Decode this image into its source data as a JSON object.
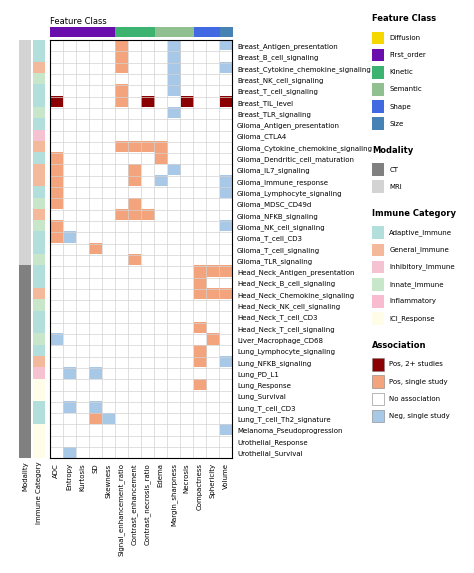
{
  "chart_data": {
    "type": "heatmap",
    "rows": [
      "Breast_Antigen_presentation",
      "Breast_B_cell_signaling",
      "Breast_Cytokine_chemokine_signaling",
      "Breast_NK_cell_signaling",
      "Breast_T_cell_signaling",
      "Breast_TIL_level",
      "Breast_TLR_signaling",
      "Glioma_Antigen_presentation",
      "Glioma_CTLA4",
      "Glioma_Cytokine_chemokine_signaling",
      "Glioma_Dendritic_cell_maturation",
      "Glioma_IL7_signaling",
      "Glioma_Immune_response",
      "Glioma_Lymphocyte_signaling",
      "Glioma_MDSC_CD49d",
      "Glioma_NFKB_signaling",
      "Glioma_NK_cell_signaling",
      "Glioma_T_cell_CD3",
      "Glioma_T_cell_signaling",
      "Glioma_TLR_signaling",
      "Head_Neck_Antigen_presentation",
      "Head_Neck_B_cell_signaling",
      "Head_Neck_Chemokine_signaling",
      "Head_Neck_NK_cell_signaling",
      "Head_Neck_T_cell_CD3",
      "Head_Neck_T_cell_signaling",
      "Liver_Macrophage_CD68",
      "Lung_Lymphocyte_signaling",
      "Lung_NFKB_signaling",
      "Lung_PD_L1",
      "Lung_Response",
      "Lung_Survival",
      "Lung_T_cell_CD3",
      "Lung_T_cell_Th2_signature",
      "Melanoma_Pseudoprogression",
      "Urothelial_Response",
      "Urothelial_Survival"
    ],
    "cols": [
      "ADC",
      "Entropy",
      "Kurtosis",
      "SD",
      "Skewness",
      "Signal_enhancement_ratio",
      "Contrast_enhancement",
      "Contrast_necrosis_ratio",
      "Edema",
      "Margin_sharpness",
      "Necrosis",
      "Compactness",
      "Sphericity",
      "Volume"
    ],
    "cells": [
      [
        0,
        0,
        0,
        0,
        0,
        2,
        0,
        0,
        0,
        3,
        0,
        0,
        0,
        3
      ],
      [
        0,
        0,
        0,
        0,
        0,
        2,
        0,
        0,
        0,
        3,
        0,
        0,
        0,
        0
      ],
      [
        0,
        0,
        0,
        0,
        0,
        2,
        0,
        0,
        0,
        3,
        0,
        0,
        0,
        3
      ],
      [
        0,
        0,
        0,
        0,
        0,
        0,
        0,
        0,
        0,
        3,
        0,
        0,
        0,
        0
      ],
      [
        0,
        0,
        0,
        0,
        0,
        2,
        0,
        0,
        0,
        3,
        0,
        0,
        0,
        0
      ],
      [
        1,
        0,
        0,
        0,
        0,
        2,
        0,
        1,
        0,
        0,
        1,
        0,
        0,
        1
      ],
      [
        0,
        0,
        0,
        0,
        0,
        0,
        0,
        0,
        0,
        3,
        0,
        0,
        0,
        0
      ],
      [
        0,
        0,
        0,
        0,
        0,
        0,
        0,
        0,
        0,
        0,
        0,
        0,
        0,
        0
      ],
      [
        0,
        0,
        0,
        0,
        0,
        0,
        0,
        0,
        0,
        0,
        0,
        0,
        0,
        0
      ],
      [
        0,
        0,
        0,
        0,
        0,
        2,
        2,
        2,
        2,
        0,
        0,
        0,
        0,
        0
      ],
      [
        2,
        0,
        0,
        0,
        0,
        0,
        0,
        0,
        2,
        0,
        0,
        0,
        0,
        0
      ],
      [
        2,
        0,
        0,
        0,
        0,
        0,
        2,
        0,
        0,
        3,
        0,
        0,
        0,
        0
      ],
      [
        2,
        0,
        0,
        0,
        0,
        0,
        2,
        0,
        3,
        0,
        0,
        0,
        0,
        3
      ],
      [
        2,
        0,
        0,
        0,
        0,
        0,
        0,
        0,
        0,
        0,
        0,
        0,
        0,
        3
      ],
      [
        2,
        0,
        0,
        0,
        0,
        0,
        2,
        0,
        0,
        0,
        0,
        0,
        0,
        0
      ],
      [
        0,
        0,
        0,
        0,
        0,
        2,
        2,
        2,
        0,
        0,
        0,
        0,
        0,
        0
      ],
      [
        2,
        0,
        0,
        0,
        0,
        0,
        0,
        0,
        0,
        0,
        0,
        0,
        0,
        3
      ],
      [
        2,
        3,
        0,
        0,
        0,
        0,
        0,
        0,
        0,
        0,
        0,
        0,
        0,
        0
      ],
      [
        0,
        0,
        0,
        2,
        0,
        0,
        0,
        0,
        0,
        0,
        0,
        0,
        0,
        0
      ],
      [
        0,
        0,
        0,
        0,
        0,
        0,
        2,
        0,
        0,
        0,
        0,
        0,
        0,
        0
      ],
      [
        0,
        0,
        0,
        0,
        0,
        0,
        0,
        0,
        0,
        0,
        0,
        2,
        2,
        2
      ],
      [
        0,
        0,
        0,
        0,
        0,
        0,
        0,
        0,
        0,
        0,
        0,
        2,
        0,
        0
      ],
      [
        0,
        0,
        0,
        0,
        0,
        0,
        0,
        0,
        0,
        0,
        0,
        2,
        2,
        2
      ],
      [
        0,
        0,
        0,
        0,
        0,
        0,
        0,
        0,
        0,
        0,
        0,
        0,
        0,
        0
      ],
      [
        0,
        0,
        0,
        0,
        0,
        0,
        0,
        0,
        0,
        0,
        0,
        0,
        0,
        0
      ],
      [
        0,
        0,
        0,
        0,
        0,
        0,
        0,
        0,
        0,
        0,
        0,
        2,
        0,
        0
      ],
      [
        3,
        0,
        0,
        0,
        0,
        0,
        0,
        0,
        0,
        0,
        0,
        0,
        2,
        0
      ],
      [
        0,
        0,
        0,
        0,
        0,
        0,
        0,
        0,
        0,
        0,
        0,
        2,
        0,
        0
      ],
      [
        0,
        0,
        0,
        0,
        0,
        0,
        0,
        0,
        0,
        0,
        0,
        2,
        0,
        3
      ],
      [
        0,
        3,
        0,
        3,
        0,
        0,
        0,
        0,
        0,
        0,
        0,
        0,
        0,
        0
      ],
      [
        0,
        0,
        0,
        0,
        0,
        0,
        0,
        0,
        0,
        0,
        0,
        2,
        0,
        0
      ],
      [
        0,
        0,
        0,
        0,
        0,
        0,
        0,
        0,
        0,
        0,
        0,
        0,
        0,
        0
      ],
      [
        0,
        3,
        0,
        3,
        0,
        0,
        0,
        0,
        0,
        0,
        0,
        0,
        0,
        0
      ],
      [
        0,
        0,
        0,
        2,
        3,
        0,
        0,
        0,
        0,
        0,
        0,
        0,
        0,
        0
      ],
      [
        0,
        0,
        0,
        0,
        0,
        0,
        0,
        0,
        0,
        0,
        0,
        0,
        0,
        3
      ],
      [
        0,
        0,
        0,
        0,
        0,
        0,
        0,
        0,
        0,
        0,
        0,
        0,
        0,
        0
      ],
      [
        0,
        3,
        0,
        0,
        0,
        0,
        0,
        0,
        0,
        0,
        0,
        0,
        0,
        0
      ]
    ],
    "grid": true,
    "column_bar": {
      "title": "Feature Class",
      "values": [
        "First_order",
        "First_order",
        "First_order",
        "First_order",
        "First_order",
        "Kinetic",
        "Kinetic",
        "Kinetic",
        "Semantic",
        "Semantic",
        "Semantic",
        "Shape",
        "Shape",
        "Size"
      ],
      "entries": [
        {
          "label": "Diffusion",
          "color": "#f5d800"
        },
        {
          "label": "First_order",
          "color": "#6a0dad"
        },
        {
          "label": "Kinetic",
          "color": "#3cb371"
        },
        {
          "label": "Semantic",
          "color": "#90c090"
        },
        {
          "label": "Shape",
          "color": "#4169e1"
        },
        {
          "label": "Size",
          "color": "#4682b4"
        }
      ]
    },
    "row_bars": [
      {
        "title": "Modality",
        "values": [
          "MRI",
          "MRI",
          "MRI",
          "MRI",
          "MRI",
          "MRI",
          "MRI",
          "MRI",
          "MRI",
          "MRI",
          "MRI",
          "MRI",
          "MRI",
          "MRI",
          "MRI",
          "MRI",
          "MRI",
          "MRI",
          "MRI",
          "MRI",
          "CT",
          "CT",
          "CT",
          "CT",
          "CT",
          "CT",
          "CT",
          "CT",
          "CT",
          "CT",
          "CT",
          "CT",
          "CT",
          "CT",
          "CT",
          "CT",
          "CT"
        ],
        "entries": [
          {
            "label": "CT",
            "color": "#808080"
          },
          {
            "label": "MRI",
            "color": "#d3d3d3"
          }
        ]
      },
      {
        "title": "Immune Category",
        "values": [
          "Adaptive_Immune",
          "Adaptive_Immune",
          "General_Immune",
          "Innate_Immune",
          "Adaptive_Immune",
          "Adaptive_Immune",
          "Innate_Immune",
          "Adaptive_Immune",
          "Inhibitory_Immune",
          "General_Immune",
          "Adaptive_Immune",
          "General_Immune",
          "General_Immune",
          "Adaptive_Immune",
          "Innate_Immune",
          "General_Immune",
          "Innate_Immune",
          "Adaptive_Immune",
          "Adaptive_Immune",
          "Innate_Immune",
          "Adaptive_Immune",
          "Adaptive_Immune",
          "General_Immune",
          "Innate_Immune",
          "Adaptive_Immune",
          "Adaptive_Immune",
          "Innate_Immune",
          "Adaptive_Immune",
          "General_Immune",
          "Inhibitory_Immune",
          "ICI_Response",
          "ICI_Response",
          "Adaptive_Immune",
          "Adaptive_Immune",
          "ICI_Response",
          "ICI_Response",
          "ICI_Response"
        ],
        "entries": [
          {
            "label": "Adaptive_Immune",
            "color": "#b2dfdb"
          },
          {
            "label": "General_Immune",
            "color": "#f4b89a"
          },
          {
            "label": "Inhibitory_Immune",
            "color": "#f4c2d0"
          },
          {
            "label": "Innate_Immune",
            "color": "#c8e6c9"
          },
          {
            "label": "Inflammatory",
            "color": "#f8bbd0"
          },
          {
            "label": "ICI_Response",
            "color": "#fffde7"
          }
        ]
      }
    ],
    "cell_legend": {
      "title": "Association",
      "entries": [
        {
          "value": 1,
          "label": "Pos, 2+ studies",
          "color": "#8b0000"
        },
        {
          "value": 2,
          "label": "Pos, single study",
          "color": "#f4a47c"
        },
        {
          "value": 0,
          "label": "No association",
          "color": "#ffffff"
        },
        {
          "value": 3,
          "label": "Neg, single study",
          "color": "#a8c8e8"
        }
      ]
    }
  }
}
